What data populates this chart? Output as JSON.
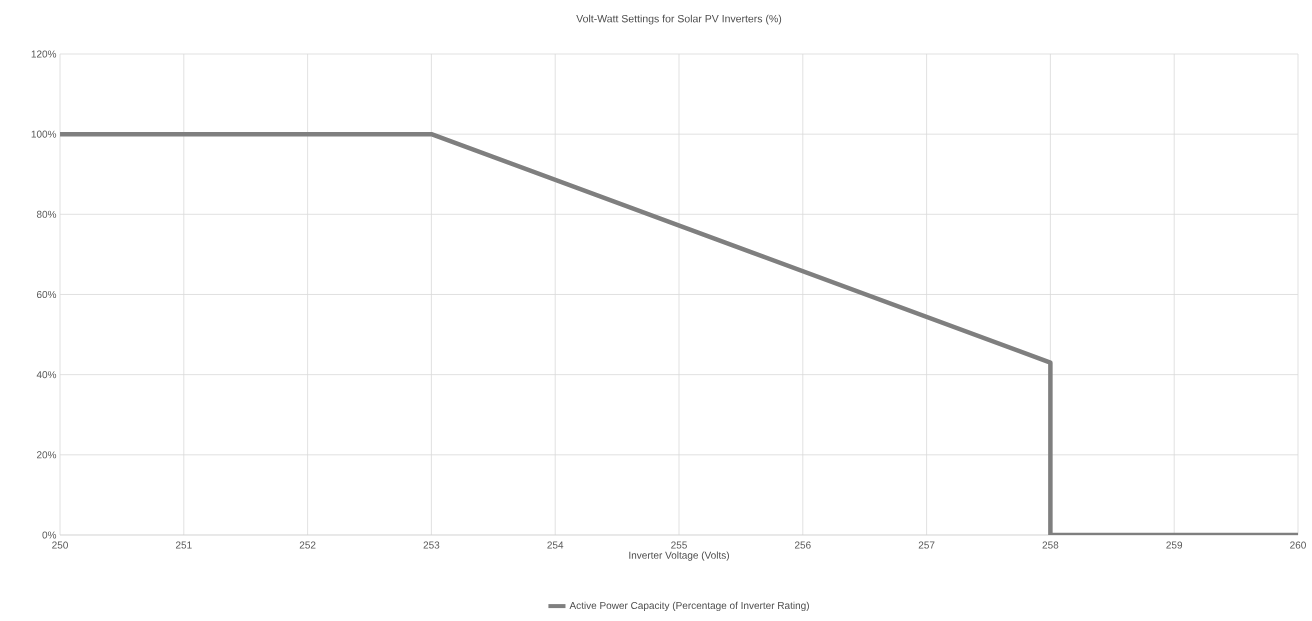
{
  "chart_data": {
    "type": "line",
    "title": "Volt-Watt Settings for Solar PV Inverters (%)",
    "xlabel": "Inverter Voltage (Volts)",
    "x": [
      250,
      253,
      258,
      258,
      260
    ],
    "series": [
      {
        "name": "Active Power Capacity (Percentage of Inverter Rating)",
        "color": "#7f7f7f",
        "values": [
          100,
          100,
          43,
          0,
          0
        ]
      }
    ],
    "xlim": [
      250,
      260
    ],
    "xticks": [
      250,
      251,
      252,
      253,
      254,
      255,
      256,
      257,
      258,
      259,
      260
    ],
    "ylim": [
      0,
      120
    ],
    "yticks": [
      {
        "value": 0,
        "label": "0%"
      },
      {
        "value": 20,
        "label": "20%"
      },
      {
        "value": 40,
        "label": "40%"
      },
      {
        "value": 60,
        "label": "60%"
      },
      {
        "value": 80,
        "label": "80%"
      },
      {
        "value": 100,
        "label": "100%"
      },
      {
        "value": 120,
        "label": "120%"
      }
    ],
    "grid": true,
    "legend": "bottom",
    "marker": "none",
    "line_style": "solid"
  }
}
